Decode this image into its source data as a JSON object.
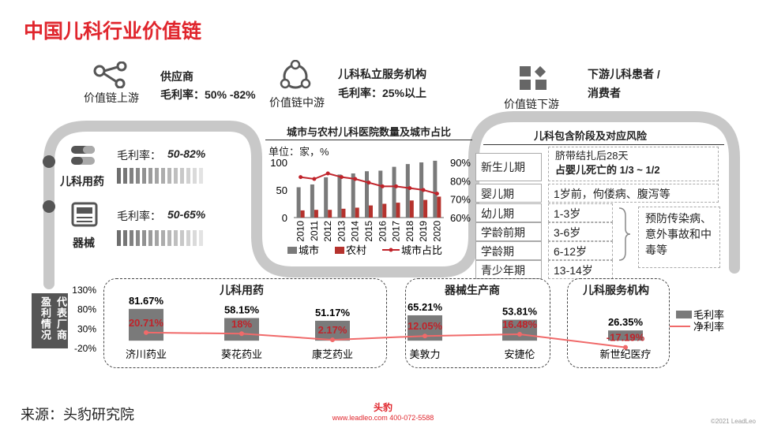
{
  "title": "中国儿科行业价值链",
  "upstream": {
    "label": "价值链上游",
    "heading": "供应商",
    "margin": "毛利率：50% -82%"
  },
  "midstream": {
    "label": "价值链中游",
    "heading": "儿科私立服务机构",
    "margin": "毛利率：25%以上"
  },
  "downstream": {
    "label": "价值链下游",
    "heading1": "下游儿科患者 /",
    "heading2": "消费者"
  },
  "supply_items": [
    {
      "name": "儿科用药",
      "margin_label": "毛利率：",
      "margin_value": "50-82%"
    },
    {
      "name": "器械",
      "margin_label": "毛利率：",
      "margin_value": "50-65%"
    }
  ],
  "colors": {
    "accent": "#e0262d",
    "city_bar": "#7a7a7a",
    "rural_bar": "#b5322d",
    "line": "#c0232a",
    "gross_bar": "#7a7a7a",
    "net_line": "#f06a6a"
  },
  "chart_data": [
    {
      "type": "bar",
      "title": "城市与农村儿科医院数量及城市占比",
      "unit_label": "单位：家，%",
      "categories": [
        "2010",
        "2011",
        "2012",
        "2013",
        "2014",
        "2015",
        "2016",
        "2017",
        "2018",
        "2019",
        "2020"
      ],
      "y_left": {
        "ticks": [
          "0",
          "50",
          "100"
        ],
        "range": [
          0,
          100
        ]
      },
      "y_right": {
        "ticks": [
          "60%",
          "70%",
          "80%",
          "90%"
        ],
        "range": [
          60,
          90
        ]
      },
      "series": [
        {
          "name": "城市",
          "kind": "bar",
          "values": [
            55,
            60,
            73,
            78,
            80,
            84,
            85,
            92,
            97,
            100,
            103
          ]
        },
        {
          "name": "农村",
          "kind": "bar",
          "values": [
            13,
            14,
            14,
            16,
            18,
            22,
            25,
            27,
            31,
            32,
            38
          ]
        },
        {
          "name": "城市占比",
          "kind": "line",
          "axis": "right",
          "values": [
            82,
            81,
            84,
            82,
            81,
            79,
            77,
            77,
            76,
            75,
            73
          ]
        }
      ]
    },
    {
      "type": "bar",
      "row_label_a": "代表厂商",
      "row_label_b": "盈利情况",
      "y_ticks": [
        "130%",
        "80%",
        "30%",
        "-20%"
      ],
      "y_range": [
        -20,
        130
      ],
      "categories": [
        "济川药业",
        "葵花药业",
        "康芝药业",
        "美敦力",
        "安捷伦",
        "新世纪医疗"
      ],
      "groups": [
        {
          "name": "儿科用药",
          "count": 3
        },
        {
          "name": "器械生产商",
          "count": 2
        },
        {
          "name": "儿科服务机构",
          "count": 1
        }
      ],
      "series": [
        {
          "name": "毛利率",
          "kind": "bar",
          "values": [
            81.67,
            58.15,
            51.17,
            65.21,
            53.81,
            26.35
          ],
          "labels": [
            "81.67%",
            "58.15%",
            "51.17%",
            "65.21%",
            "53.81%",
            "26.35%"
          ]
        },
        {
          "name": "净利率",
          "kind": "line",
          "values": [
            20.71,
            18,
            2.17,
            12.05,
            16.48,
            -17.19
          ],
          "labels": [
            "20.71%",
            "18%",
            "2.17%",
            "12.05%",
            "16.48%",
            "-17.19%"
          ]
        }
      ]
    }
  ],
  "life_stages": {
    "title": "儿科包含阶段及对应风险",
    "rows": [
      {
        "stage": "新生儿期",
        "risk1": "脐带结扎后28天",
        "risk2": "占婴儿死亡的 1/3 ~ 1/2"
      },
      {
        "stage": "婴儿期",
        "risk1": "1岁前，佝偻病、腹泻等"
      },
      {
        "stage": "幼儿期",
        "risk1": "1-3岁"
      },
      {
        "stage": "学龄前期",
        "risk1": "3-6岁"
      },
      {
        "stage": "学龄期",
        "risk1": "6-12岁"
      },
      {
        "stage": "青少年期",
        "risk1": "13-14岁"
      }
    ],
    "group_risk": "预防传染病、意外事故和中毒等"
  },
  "footer": {
    "source": "来源：头豹研究院",
    "brand": "头豹",
    "contact": "www.leadleo.com   400-072-5588",
    "copyright": "©2021 LeadLeo"
  }
}
